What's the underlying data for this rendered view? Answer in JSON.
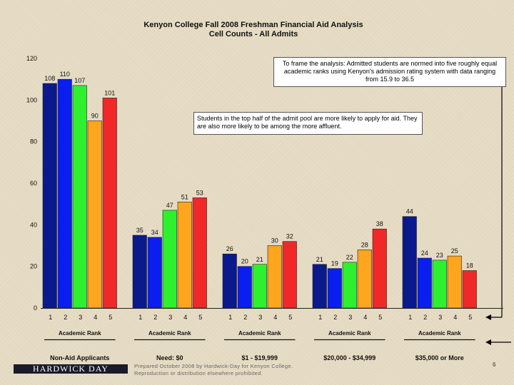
{
  "title": {
    "line1": "Kenyon College Fall 2008 Freshman Financial Aid Analysis",
    "line2": "Cell Counts - All Admits"
  },
  "notes": {
    "note1": "To frame the analysis: Admitted students are normed into five roughly equal academic ranks using Kenyon's admission rating system with data ranging from 15.9 to 36.5",
    "note2": "Students in the top half of the admit pool are more likely to apply for aid. They are also more likely to be among the more affluent."
  },
  "footer": {
    "line1": "Prepared October 2008 by Hardwick-Day for Kenyon College.",
    "line2": "Reproduction or distribution elsewhere prohibited."
  },
  "logo_text": "HARDWICK DAY",
  "page_number": "6",
  "colors": {
    "rank1": "#0a1a8c",
    "rank2": "#0a1ef0",
    "rank3": "#2ef02e",
    "rank4": "#ffa51e",
    "rank5": "#f02828"
  },
  "chart_data": {
    "type": "bar",
    "ylim": [
      0,
      120
    ],
    "yticks": [
      "0",
      "20",
      "40",
      "60",
      "80",
      "100",
      "120"
    ],
    "grid": false,
    "groups": [
      {
        "name": "Non-Aid Applicants",
        "axis_label": "Academic Rank",
        "ranks": [
          "1",
          "2",
          "3",
          "4",
          "5"
        ],
        "values": [
          108,
          110,
          107,
          90,
          101
        ]
      },
      {
        "name": "Need: $0",
        "axis_label": "Academic Rank",
        "ranks": [
          "1",
          "2",
          "3",
          "4",
          "5"
        ],
        "values": [
          35,
          34,
          47,
          51,
          53
        ]
      },
      {
        "name": "$1 - $19,999",
        "axis_label": "Academic Rank",
        "ranks": [
          "1",
          "2",
          "3",
          "4",
          "5"
        ],
        "values": [
          26,
          20,
          21,
          30,
          32
        ]
      },
      {
        "name": "$20,000 - $34,999",
        "axis_label": "Academic Rank",
        "ranks": [
          "1",
          "2",
          "3",
          "4",
          "5"
        ],
        "values": [
          21,
          19,
          22,
          28,
          38
        ]
      },
      {
        "name": "$35,000 or More",
        "axis_label": "Academic Rank",
        "ranks": [
          "1",
          "2",
          "3",
          "4",
          "5"
        ],
        "values": [
          44,
          24,
          23,
          25,
          18
        ]
      }
    ]
  }
}
